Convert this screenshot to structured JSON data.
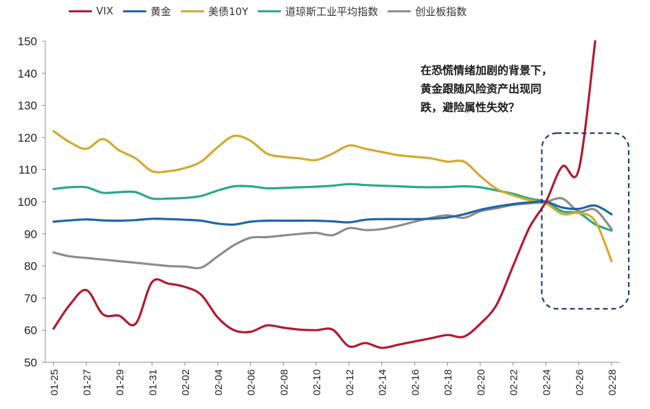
{
  "chart_data": {
    "type": "line",
    "title": "",
    "xlabel": "",
    "ylabel": "",
    "ylim": [
      50,
      150
    ],
    "yticks": [
      50,
      60,
      70,
      80,
      90,
      100,
      110,
      120,
      130,
      140,
      150
    ],
    "x": [
      "01-25",
      "01-26",
      "01-27",
      "01-28",
      "01-29",
      "01-30",
      "01-31",
      "02-01",
      "02-02",
      "02-03",
      "02-04",
      "02-05",
      "02-06",
      "02-07",
      "02-08",
      "02-09",
      "02-10",
      "02-11",
      "02-12",
      "02-13",
      "02-14",
      "02-15",
      "02-16",
      "02-17",
      "02-18",
      "02-19",
      "02-20",
      "02-21",
      "02-22",
      "02-23",
      "02-24",
      "02-25",
      "02-26",
      "02-27",
      "02-28"
    ],
    "xtick_labels": [
      "01-25",
      "01-27",
      "01-29",
      "01-31",
      "02-02",
      "02-04",
      "02-06",
      "02-08",
      "02-10",
      "02-12",
      "02-14",
      "02-16",
      "02-18",
      "02-20",
      "02-22",
      "02-24",
      "02-26",
      "02-28"
    ],
    "legend_position": "top",
    "grid": false,
    "series": [
      {
        "name": "VIX",
        "color": "#b5172d",
        "values": [
          60.5,
          68,
          72.5,
          65,
          64.5,
          62,
          75,
          74.5,
          73.5,
          71,
          64,
          60,
          59.5,
          61.5,
          60.8,
          60.2,
          60,
          60.2,
          55,
          56,
          54.5,
          55.5,
          56.5,
          57.5,
          58.5,
          58,
          62,
          68,
          80,
          92,
          100,
          111,
          110,
          150,
          null
        ]
      },
      {
        "name": "黄金",
        "color": "#1f64a8",
        "values": [
          93.8,
          94.2,
          94.5,
          94.2,
          94.1,
          94.3,
          94.7,
          94.6,
          94.4,
          94.1,
          93.2,
          92.9,
          93.8,
          94.1,
          94.1,
          94.1,
          94.1,
          93.9,
          93.6,
          94.4,
          94.6,
          94.6,
          94.6,
          94.7,
          95.1,
          96.1,
          97.5,
          98.5,
          99.3,
          99.8,
          100,
          98.2,
          97.8,
          98.8,
          96.1
        ]
      },
      {
        "name": "美债10Y",
        "color": "#d4a92a",
        "values": [
          122,
          118.5,
          116.5,
          119.5,
          116,
          113.5,
          109.5,
          109.5,
          110.5,
          112.5,
          117,
          120.5,
          119,
          115,
          114,
          113.5,
          113,
          115,
          117.5,
          116.5,
          115.5,
          114.5,
          114,
          113.5,
          112.5,
          112.5,
          108,
          104,
          102,
          100.5,
          99.5,
          96.2,
          96.5,
          94,
          81.5
        ]
      },
      {
        "name": "道琼斯工业平均指数",
        "color": "#2aa889",
        "values": [
          104,
          104.5,
          104.5,
          102.8,
          103,
          103,
          101,
          101,
          101.2,
          101.8,
          103.5,
          104.8,
          104.8,
          104.2,
          104.3,
          104.5,
          104.7,
          105,
          105.5,
          105.2,
          105,
          104.8,
          104.6,
          104.5,
          104.6,
          104.8,
          104.5,
          103.5,
          102.5,
          101,
          100,
          97,
          96.5,
          93,
          91
        ]
      },
      {
        "name": "创业板指数",
        "color": "#8c8c8c",
        "values": [
          84.2,
          83,
          82.5,
          82,
          81.5,
          81,
          80.5,
          80,
          79.8,
          79.5,
          83,
          86.5,
          88.8,
          89,
          89.5,
          90,
          90.3,
          89.6,
          91.8,
          91.2,
          91.5,
          92.5,
          93.8,
          95,
          95.8,
          95,
          97,
          98,
          99,
          99.5,
          100,
          101,
          97,
          97.5,
          91.5
        ]
      }
    ],
    "annotation": {
      "lines": [
        "在恐慌情绪加剧的背景下，",
        "黄金跟随风险资产出现同",
        "跌，避险属性失效？"
      ]
    },
    "highlight_box_style": "dashed navy rounded rectangle"
  }
}
